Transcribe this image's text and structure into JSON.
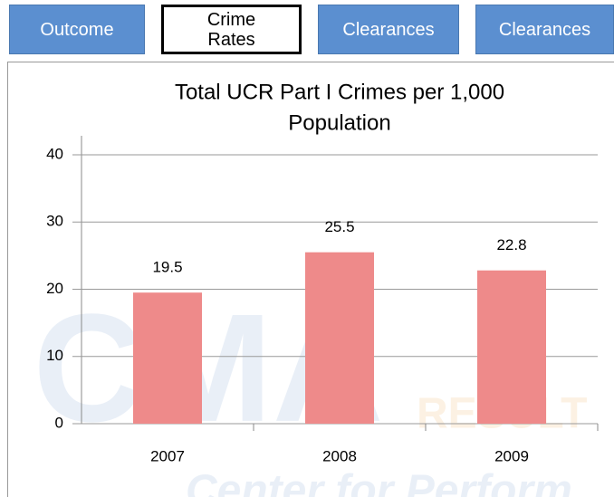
{
  "tabs": [
    {
      "label": "Outcome",
      "selected": false
    },
    {
      "label": "Crime\nRates",
      "selected": true
    },
    {
      "label": "Clearances",
      "selected": false
    },
    {
      "label": "Clearances",
      "selected": false
    }
  ],
  "watermark": [
    "CMA",
    "RESULT",
    "Center for Perform"
  ],
  "chart_data": {
    "type": "bar",
    "title": [
      "Total UCR Part I Crimes per 1,000",
      "Population"
    ],
    "categories": [
      "2007",
      "2008",
      "2009"
    ],
    "values": [
      19.5,
      25.5,
      22.8
    ],
    "color": "#ee8a8a",
    "ylim": [
      0,
      40
    ],
    "yticks": [
      0,
      10,
      20,
      30,
      40
    ],
    "grid": true
  }
}
